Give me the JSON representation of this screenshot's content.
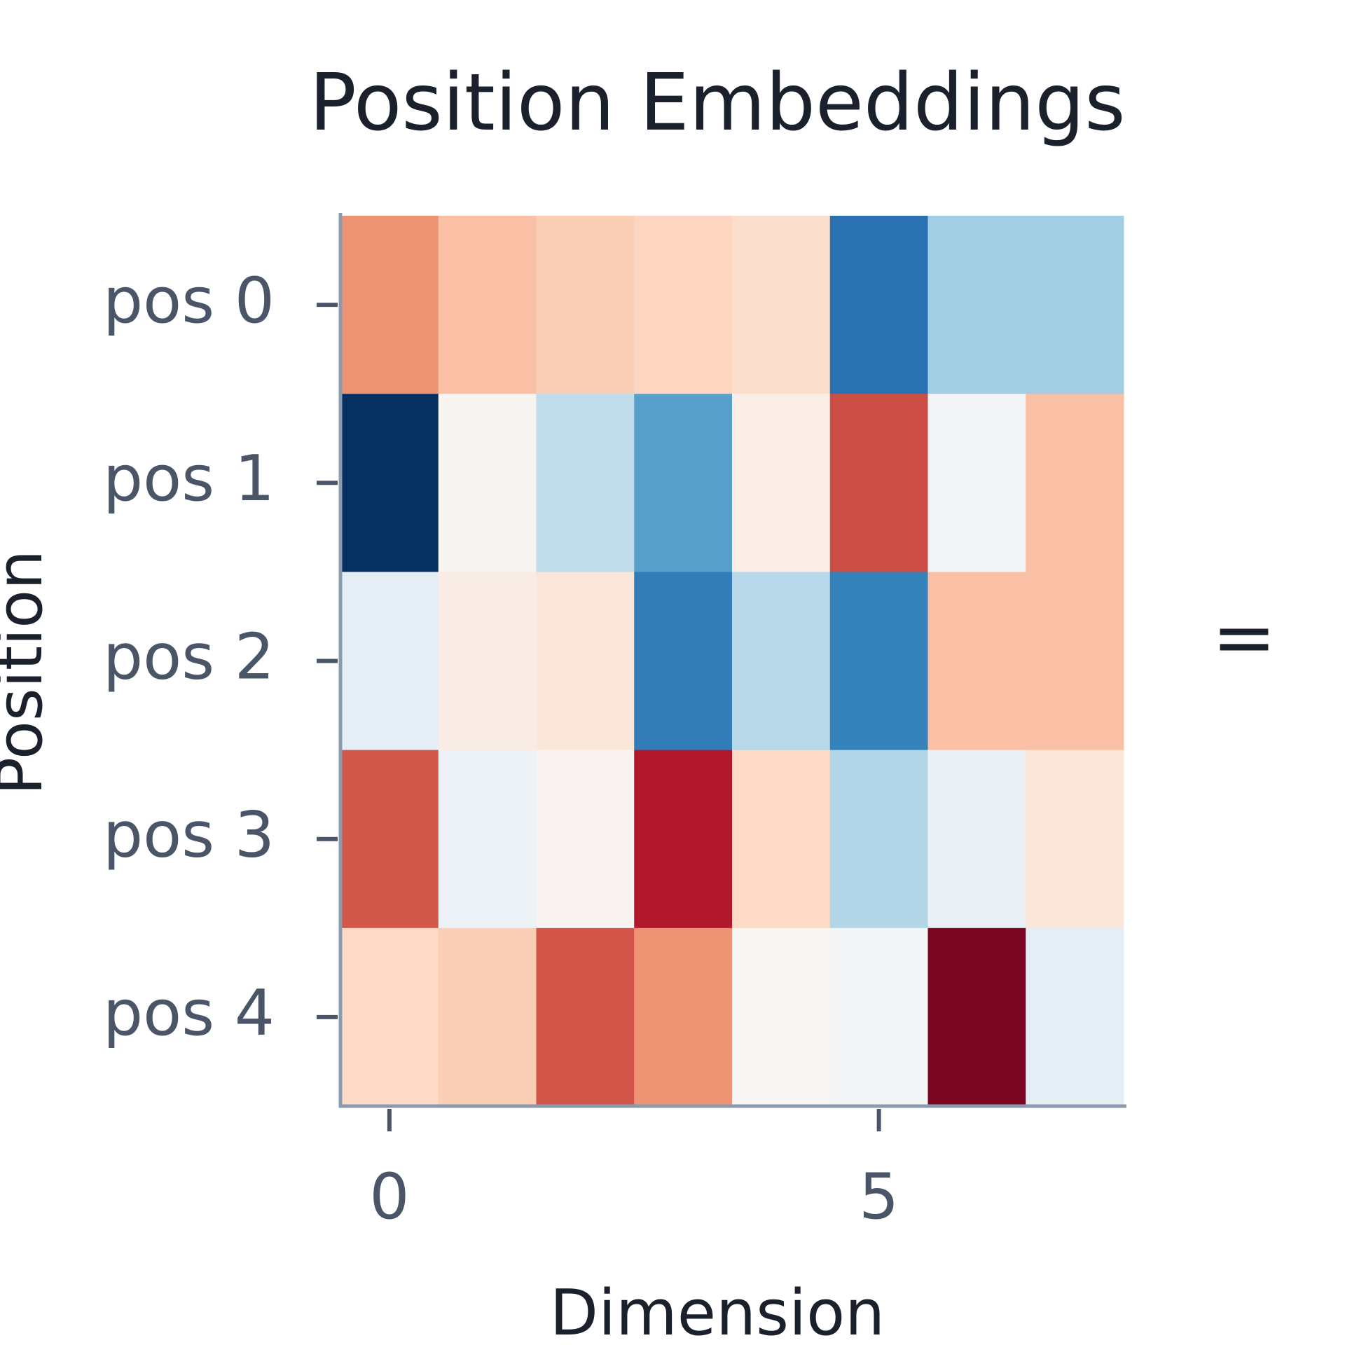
{
  "chart_data": {
    "type": "heatmap",
    "title": "Position Embeddings",
    "x_label": "Dimension",
    "y_label": "Position",
    "x": [
      0,
      1,
      2,
      3,
      4,
      5,
      6,
      7
    ],
    "categories": [
      "pos 0",
      "pos 1",
      "pos 2",
      "pos 3",
      "pos 4"
    ],
    "values": [
      [
        0.45,
        0.3,
        0.25,
        0.22,
        0.18,
        -0.75,
        -0.35,
        -0.35
      ],
      [
        -1.0,
        0.02,
        -0.25,
        -0.55,
        0.07,
        0.65,
        -0.02,
        0.3
      ],
      [
        -0.1,
        0.08,
        0.12,
        -0.7,
        -0.28,
        -0.68,
        0.3,
        0.3
      ],
      [
        0.62,
        -0.06,
        0.03,
        0.8,
        0.2,
        -0.3,
        -0.08,
        0.12
      ],
      [
        0.2,
        0.25,
        0.63,
        0.45,
        0.01,
        -0.02,
        0.95,
        -0.1
      ]
    ],
    "xlim": [
      -0.5,
      7.5
    ],
    "xticks": [
      0,
      5
    ],
    "zlim": [
      -1,
      1
    ],
    "colorscale": [
      "#053061",
      "#2166ac",
      "#4393c3",
      "#92c5de",
      "#d1e5f0",
      "#f7f7f7",
      "#fddbc7",
      "#f4a582",
      "#d6604d",
      "#b2182b",
      "#67001f"
    ],
    "annotation": "="
  }
}
